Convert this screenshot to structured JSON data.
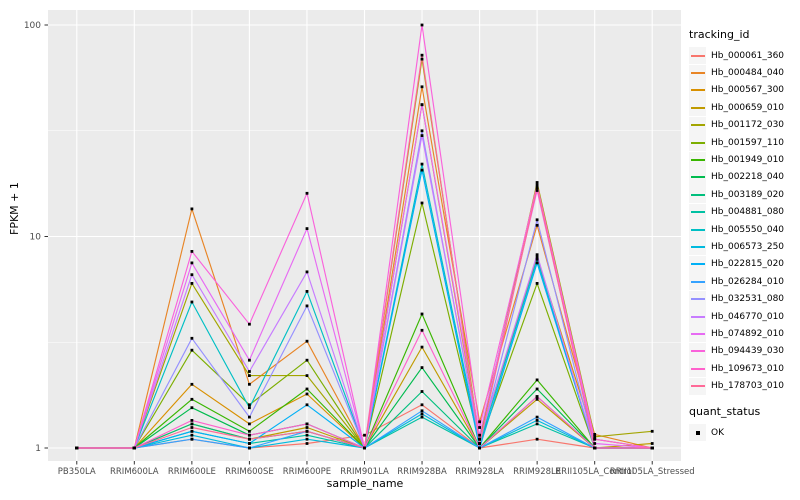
{
  "figure": {
    "legend": {
      "tracking_title": "tracking_id",
      "quant_title": "quant_status",
      "quant_items": [
        {
          "label": "OK"
        }
      ]
    },
    "colors": {
      "panel_bg": "#EBEBEB",
      "grid": "#FFFFFF",
      "point": "#000000",
      "tick_text": "#4D4D4D",
      "tick_mark": "#333333",
      "legend_key_bg": "#F5F5F5"
    }
  },
  "chart_data": {
    "type": "line",
    "title": "",
    "xlabel": "sample_name",
    "ylabel": "FPKM + 1",
    "y_scale": "log10",
    "ylim": [
      1,
      110
    ],
    "y_ticks": [
      1,
      10,
      100
    ],
    "y_tick_labels": [
      "1",
      "10",
      "100"
    ],
    "y_minor_gridlines": [
      3.162,
      31.62
    ],
    "grid": true,
    "legend_position": "right",
    "point_marker": "black-filled-square (quant_status = OK)",
    "categories": [
      "PB350LA",
      "RRIM600LA",
      "RRIM600LE",
      "RRIM600SE",
      "RRIM600PE",
      "RRIM901LA",
      "RRIM928BA",
      "RRIM928LA",
      "RRIM928LE",
      "RRII105LA_Control",
      "RRII105LA_Stressed"
    ],
    "series": [
      {
        "name": "Hb_000061_360",
        "color": "#F8766D",
        "values": [
          1,
          1,
          1.1,
          1,
          1.05,
          1.15,
          1.6,
          1,
          1.1,
          1,
          1
        ]
      },
      {
        "name": "Hb_000484_040",
        "color": "#E88526",
        "values": [
          1,
          1,
          13.5,
          2.0,
          3.2,
          1,
          51,
          1.33,
          11.3,
          1.16,
          1
        ]
      },
      {
        "name": "Hb_000567_300",
        "color": "#D89000",
        "values": [
          1,
          1,
          2.0,
          1.3,
          1.8,
          1,
          42,
          1.1,
          8,
          1.1,
          1
        ]
      },
      {
        "name": "Hb_000659_010",
        "color": "#C09B00",
        "values": [
          1,
          1,
          1.3,
          1.1,
          1.25,
          1,
          3.0,
          1,
          1.7,
          1,
          1.05
        ]
      },
      {
        "name": "Hb_001172_030",
        "color": "#A3A500",
        "values": [
          1,
          1,
          6.0,
          2.2,
          2.2,
          1,
          69,
          1.1,
          18,
          1.13,
          1.2
        ]
      },
      {
        "name": "Hb_001597_110",
        "color": "#7CAE00",
        "values": [
          1,
          1,
          2.9,
          1.6,
          2.6,
          1,
          14.4,
          1.05,
          6,
          1,
          1
        ]
      },
      {
        "name": "Hb_001949_010",
        "color": "#39B600",
        "values": [
          1,
          1,
          1.7,
          1.2,
          1.9,
          1,
          4.3,
          1,
          2.1,
          1,
          1
        ]
      },
      {
        "name": "Hb_002218_040",
        "color": "#00BB4E",
        "values": [
          1,
          1,
          1.55,
          1.15,
          1.3,
          1,
          2.4,
          1,
          1.9,
          1,
          1
        ]
      },
      {
        "name": "Hb_003189_020",
        "color": "#00BF7D",
        "values": [
          1,
          1,
          1.3,
          1.1,
          1.2,
          1,
          1.85,
          1,
          1.75,
          1,
          1
        ]
      },
      {
        "name": "Hb_004881_080",
        "color": "#00C1A3",
        "values": [
          1,
          1,
          1.2,
          1.05,
          1.15,
          1,
          1.4,
          1,
          1.3,
          1,
          1
        ]
      },
      {
        "name": "Hb_005550_040",
        "color": "#00BFC4",
        "values": [
          1,
          1,
          4.9,
          1.55,
          5.5,
          1,
          22,
          1.05,
          7.8,
          1,
          1
        ]
      },
      {
        "name": "Hb_006573_250",
        "color": "#00BADE",
        "values": [
          1,
          1,
          1.15,
          1,
          1.1,
          1,
          1.45,
          1,
          1.35,
          1,
          1
        ]
      },
      {
        "name": "Hb_022815_020",
        "color": "#00B0F6",
        "values": [
          1,
          1,
          1.2,
          1.05,
          1.6,
          1,
          20.6,
          1,
          7.5,
          1,
          1
        ]
      },
      {
        "name": "Hb_026284_010",
        "color": "#35A2FF",
        "values": [
          1,
          1,
          1.1,
          1,
          1.2,
          1,
          1.5,
          1,
          1.4,
          1,
          1
        ]
      },
      {
        "name": "Hb_032531_080",
        "color": "#9590FF",
        "values": [
          1,
          1,
          3.3,
          1.4,
          4.7,
          1,
          31.6,
          1.05,
          12,
          1,
          1
        ]
      },
      {
        "name": "Hb_046770_010",
        "color": "#C77CFF",
        "values": [
          1,
          1,
          6.6,
          2.3,
          6.8,
          1,
          30,
          1.1,
          8.2,
          1,
          1
        ]
      },
      {
        "name": "Hb_074892_010",
        "color": "#E76BF3",
        "values": [
          1,
          1,
          7.5,
          2.6,
          10.9,
          1,
          42,
          1.15,
          16.5,
          1.05,
          1
        ]
      },
      {
        "name": "Hb_094439_030",
        "color": "#FA62DB",
        "values": [
          1,
          1,
          8.5,
          3.85,
          16,
          1,
          100,
          1.25,
          17.5,
          1.1,
          1
        ]
      },
      {
        "name": "Hb_109673_010",
        "color": "#FF61CC",
        "values": [
          1,
          1,
          1.35,
          1.15,
          1.3,
          1,
          3.6,
          1,
          1.75,
          1,
          1
        ]
      },
      {
        "name": "Hb_178703_010",
        "color": "#FF6A98",
        "values": [
          1,
          1,
          1.25,
          1.1,
          1.2,
          1,
          72,
          1.05,
          17,
          1,
          1
        ]
      }
    ]
  }
}
